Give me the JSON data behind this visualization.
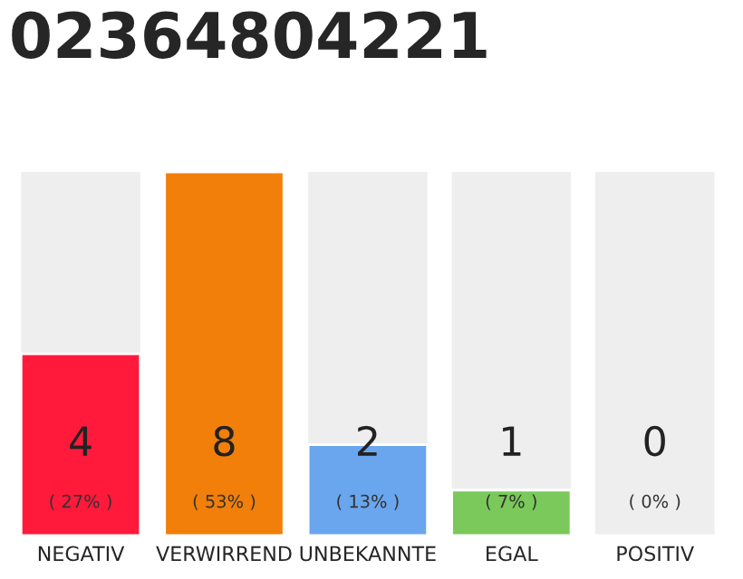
{
  "chart_data": {
    "type": "bar",
    "title": "02364804221",
    "categories": [
      "NEGATIV",
      "VERWIRREND",
      "UNBEKANNTE",
      "EGAL",
      "POSITIV"
    ],
    "values": [
      4,
      8,
      2,
      1,
      0
    ],
    "colors": [
      "#ff1a3c",
      "#f17f0a",
      "#6aa6ee",
      "#7ac95a",
      null
    ],
    "data_labels": true,
    "annotations": [
      "( 27% )",
      "( 53% )",
      "( 13% )",
      "( 7% )",
      "( 0% )"
    ],
    "tick_labels": "x"
  }
}
